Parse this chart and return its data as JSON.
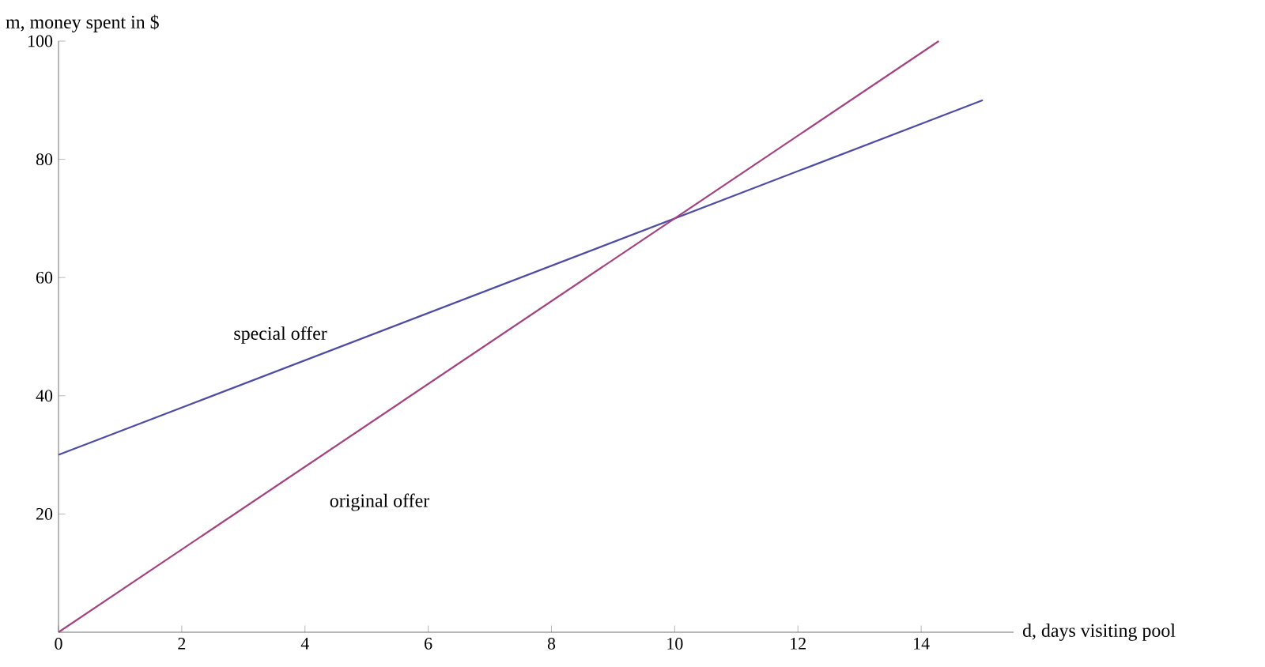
{
  "chart_data": {
    "type": "line",
    "xlabel": "d, days visiting pool",
    "ylabel": "m, money spent in $",
    "xlim": [
      0,
      15.5
    ],
    "ylim": [
      0,
      100
    ],
    "xticks": [
      0,
      2,
      4,
      6,
      8,
      10,
      12,
      14
    ],
    "yticks": [
      20,
      40,
      60,
      80,
      100
    ],
    "grid": false,
    "marker": "none",
    "line_style": "solid",
    "series": [
      {
        "name": "special offer",
        "color": "#4d4da3",
        "x": [
          0,
          15
        ],
        "values": [
          30,
          90
        ]
      },
      {
        "name": "original offer",
        "color": "#a3437f",
        "x": [
          0,
          14.2857
        ],
        "values": [
          0,
          100
        ]
      }
    ]
  }
}
